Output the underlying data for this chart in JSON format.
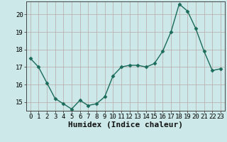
{
  "x": [
    0,
    1,
    2,
    3,
    4,
    5,
    6,
    7,
    8,
    9,
    10,
    11,
    12,
    13,
    14,
    15,
    16,
    17,
    18,
    19,
    20,
    21,
    22,
    23
  ],
  "y": [
    17.5,
    17.0,
    16.1,
    15.2,
    14.9,
    14.6,
    15.1,
    14.8,
    14.9,
    15.3,
    16.5,
    17.0,
    17.1,
    17.1,
    17.0,
    17.2,
    17.9,
    19.0,
    20.6,
    20.2,
    19.2,
    17.9,
    16.8,
    16.9
  ],
  "line_color": "#1a6b5a",
  "marker": "D",
  "marker_size": 2.5,
  "bg_color": "#cce8e8",
  "grid_color": "#b8a8a8",
  "xlabel": "Humidex (Indice chaleur)",
  "xlim": [
    -0.5,
    23.5
  ],
  "ylim": [
    14.5,
    20.75
  ],
  "yticks": [
    15,
    16,
    17,
    18,
    19,
    20
  ],
  "xticks": [
    0,
    1,
    2,
    3,
    4,
    5,
    6,
    7,
    8,
    9,
    10,
    11,
    12,
    13,
    14,
    15,
    16,
    17,
    18,
    19,
    20,
    21,
    22,
    23
  ],
  "tick_fontsize": 6.5,
  "xlabel_fontsize": 8,
  "line_width": 1.0
}
